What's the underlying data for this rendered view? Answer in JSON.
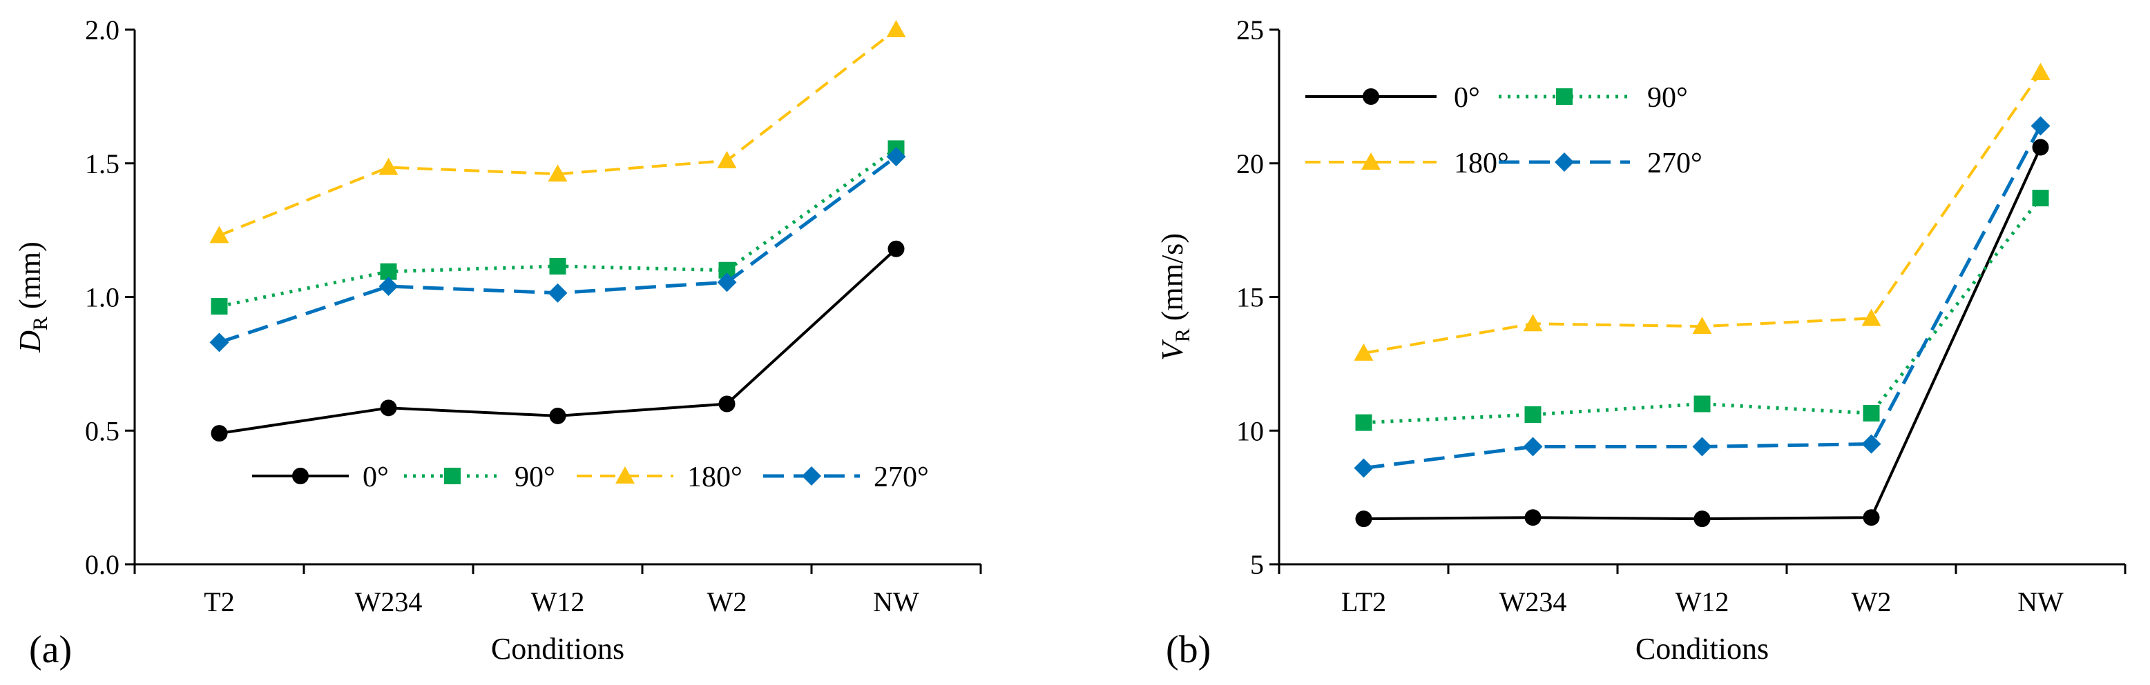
{
  "colors": {
    "s0": "#000000",
    "s90": "#00A651",
    "s180": "#FFC20E",
    "s270": "#0072BC"
  },
  "chart_data": [
    {
      "type": "line",
      "panel_label": "(a)",
      "title": "",
      "xlabel": "Conditions",
      "ylabel": "D",
      "ylabel_sub": "R",
      "ylabel_unit": " (mm)",
      "categories": [
        "T2",
        "W234",
        "W12",
        "W2",
        "NW"
      ],
      "ylim": [
        0.0,
        2.0
      ],
      "yticks": [
        "0.0",
        "0.5",
        "1.0",
        "1.5",
        "2.0"
      ],
      "grid": false,
      "legend_position": "bottom-center",
      "series": [
        {
          "name": "0°",
          "values": [
            0.49,
            0.585,
            0.555,
            0.6,
            1.18
          ]
        },
        {
          "name": "90°",
          "values": [
            0.965,
            1.095,
            1.115,
            1.1,
            1.555
          ]
        },
        {
          "name": "180°",
          "values": [
            1.23,
            1.485,
            1.46,
            1.51,
            2.0
          ]
        },
        {
          "name": "270°",
          "values": [
            0.83,
            1.04,
            1.015,
            1.055,
            1.525
          ]
        }
      ]
    },
    {
      "type": "line",
      "panel_label": "(b)",
      "title": "",
      "xlabel": "Conditions",
      "ylabel": "V",
      "ylabel_sub": "R",
      "ylabel_unit": " (mm/s)",
      "categories": [
        "LT2",
        "W234",
        "W12",
        "W2",
        "NW"
      ],
      "ylim": [
        5,
        25
      ],
      "yticks": [
        "5",
        "10",
        "15",
        "20",
        "25"
      ],
      "grid": false,
      "legend_position": "top-left",
      "series": [
        {
          "name": "0°",
          "values": [
            6.7,
            6.75,
            6.7,
            6.75,
            20.6
          ]
        },
        {
          "name": "90°",
          "values": [
            10.3,
            10.6,
            11.0,
            10.65,
            18.7
          ]
        },
        {
          "name": "180°",
          "values": [
            12.9,
            14.0,
            13.9,
            14.2,
            23.4
          ]
        },
        {
          "name": "270°",
          "values": [
            8.6,
            9.4,
            9.4,
            9.5,
            21.4
          ]
        }
      ]
    }
  ]
}
